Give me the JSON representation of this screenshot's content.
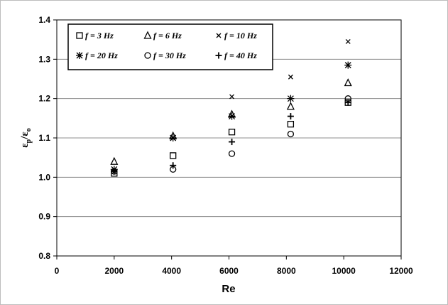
{
  "chart_data": {
    "type": "scatter",
    "xlabel": "Re",
    "ylabel": "εp/εo",
    "ylabel_main": "ε",
    "ylabel_sub1": "p",
    "ylabel_slash": "/ε",
    "ylabel_sub2": "o",
    "xlim": [
      0,
      12000
    ],
    "ylim": [
      0.8,
      1.4
    ],
    "xticks": [
      "0",
      "2000",
      "4000",
      "6000",
      "8000",
      "10000",
      "12000"
    ],
    "yticks": [
      "0.8",
      "0.9",
      "1.0",
      "1.1",
      "1.2",
      "1.3",
      "1.4"
    ],
    "grid": "horizontal",
    "legend_position": "top-left",
    "series": [
      {
        "name": "f = 3 Hz",
        "marker": "square",
        "x": [
          2000,
          4050,
          6100,
          8150,
          10150
        ],
        "y": [
          1.01,
          1.055,
          1.115,
          1.135,
          1.19
        ]
      },
      {
        "name": "f = 6 Hz",
        "marker": "triangle",
        "x": [
          2000,
          4050,
          6100,
          8150,
          10150
        ],
        "y": [
          1.04,
          1.105,
          1.16,
          1.18,
          1.24
        ]
      },
      {
        "name": "f = 10 Hz",
        "marker": "x",
        "x": [
          2000,
          4050,
          6100,
          8150,
          10150
        ],
        "y": [
          1.015,
          1.1,
          1.205,
          1.255,
          1.345
        ]
      },
      {
        "name": "f = 20 Hz",
        "marker": "asterisk",
        "x": [
          2000,
          4050,
          6100,
          8150,
          10150
        ],
        "y": [
          1.02,
          1.1,
          1.155,
          1.2,
          1.285
        ]
      },
      {
        "name": "f = 30 Hz",
        "marker": "circle",
        "x": [
          2000,
          4050,
          6100,
          8150,
          10150
        ],
        "y": [
          1.015,
          1.02,
          1.06,
          1.11,
          1.2
        ]
      },
      {
        "name": "f = 40 Hz",
        "marker": "plus",
        "x": [
          2000,
          4050,
          6100,
          8150,
          10150
        ],
        "y": [
          1.015,
          1.03,
          1.09,
          1.155,
          1.19
        ]
      }
    ]
  }
}
